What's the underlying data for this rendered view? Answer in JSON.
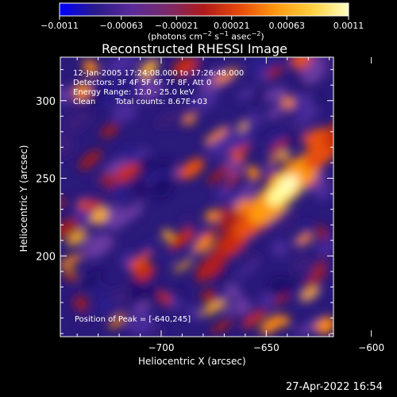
{
  "chart_data": {
    "type": "heatmap",
    "title": "Reconstructed RHESSI Image",
    "xlabel": "Heliocentric X (arcsec)",
    "ylabel": "Heliocentric Y (arcsec)",
    "xlim": [
      -748,
      -618
    ],
    "ylim": [
      148,
      328
    ],
    "x_ticks": [
      -700,
      -650,
      -600
    ],
    "x_tick_labels": [
      "−700",
      "−650",
      "−600"
    ],
    "y_ticks": [
      200,
      250,
      300
    ],
    "y_tick_labels": [
      "200",
      "250",
      "300"
    ],
    "colorbar": {
      "min": -0.0011,
      "max": 0.0011,
      "tick_values": [
        -0.0011,
        -0.00063,
        -0.00021,
        0.00021,
        0.00063,
        0.0011
      ],
      "tick_labels": [
        "−0.0011",
        "−0.00063",
        "−0.00021",
        "0.00021",
        "0.00063",
        "0.0011"
      ],
      "units_prefix": "(photons cm",
      "units_exp1": "−2",
      "units_mid": " s",
      "units_exp2": "−1",
      "units_mid2": " asec",
      "units_exp3": "−2",
      "units_suffix": ")",
      "colormap": [
        "#0000ff",
        "#2a1a8a",
        "#5a2a9a",
        "#7a2a6a",
        "#b01a1a",
        "#e84a0a",
        "#ff9a10",
        "#ffd040",
        "#ffffc0"
      ]
    },
    "annotations": {
      "time_range": "12-Jan-2005 17:24:08.000 to 17:26:48.000",
      "detectors": "Detectors: 3F 4F 5F 6F 7F 8F, Att 0",
      "energy_range": "Energy Range: 12.0 - 25.0 keV",
      "clean_label": "Clean",
      "total_counts": "Total counts: 8.67E+03",
      "peak_position": "Position of Peak = [-640,245]"
    },
    "peak": [
      -640,
      245
    ]
  },
  "footer": {
    "date_stamp": "27-Apr-2022 16:54"
  }
}
